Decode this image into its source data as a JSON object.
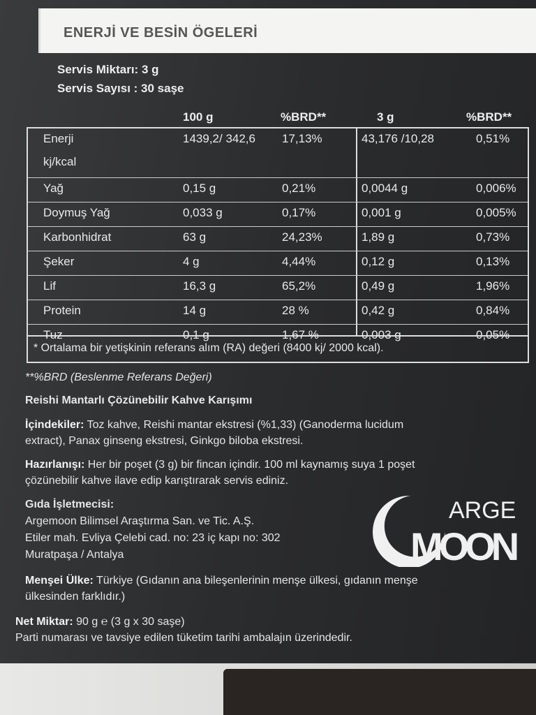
{
  "title": "ENERJİ VE BESİN ÖGELERİ",
  "serving_size": "Servis Miktarı: 3 g",
  "serving_count": "Servis Sayısı : 30 saşe",
  "columns": [
    "100 g",
    "%BRD**",
    "3 g",
    "%BRD**"
  ],
  "rows": [
    {
      "name": "Enerji",
      "sub": "kj/kcal",
      "v100": "1439,2/ 342,6",
      "brd100": "17,13%",
      "v3": "43,176 /10,28",
      "brd3": "0,51%"
    },
    {
      "name": "Yağ",
      "v100": "0,15 g",
      "brd100": "0,21%",
      "v3": "0,0044 g",
      "brd3": "0,006%"
    },
    {
      "name": "Doymuş Yağ",
      "v100": "0,033 g",
      "brd100": "0,17%",
      "v3": "0,001 g",
      "brd3": "0,005%"
    },
    {
      "name": "Karbonhidrat",
      "v100": "63 g",
      "brd100": "24,23%",
      "v3": "1,89 g",
      "brd3": "0,73%"
    },
    {
      "name": "Şeker",
      "v100": "4 g",
      "brd100": "4,44%",
      "v3": "0,12 g",
      "brd3": "0,13%"
    },
    {
      "name": "Lif",
      "v100": "16,3 g",
      "brd100": "65,2%",
      "v3": "0,49 g",
      "brd3": "1,96%"
    },
    {
      "name": "Protein",
      "v100": "14 g",
      "brd100": "28 %",
      "v3": "0,42 g",
      "brd3": "0,84%"
    },
    {
      "name": "Tuz",
      "v100": "0,1 g",
      "brd100": "1,67 %",
      "v3": "0,003 g",
      "brd3": "0,05%"
    }
  ],
  "ra_note": "* Ortalama bir yetişkinin referans alım (RA) değeri (8400 kj/ 2000 kcal).",
  "brd_note": "**%BRD (Beslenme Referans Değeri)",
  "product_name": "Reishi Mantarlı Çözünebilir Kahve Karışımı",
  "ingredients_label": "İçindekiler:",
  "ingredients_l1": " Toz kahve, Reishi mantar ekstresi (%1,33) (Ganoderma lucidum",
  "ingredients_l2": "extract), Panax ginseng ekstresi, Ginkgo biloba ekstresi.",
  "prep_label": "Hazırlanışı:",
  "prep_l1": " Her bir poşet (3 g) bir fincan içindir. 100 ml kaynamış suya 1 poşet",
  "prep_l2": "çözünebilir kahve ilave edip karıştırarak servis ediniz.",
  "operator_label": "Gıda İşletmecisi:",
  "operator_l1": "Argemoon Bilimsel Araştırma San. ve Tic. A.Ş.",
  "operator_l2": "Etiler mah. Evliya Çelebi cad. no: 23 iç kapı no: 302",
  "operator_l3": "Muratpaşa / Antalya",
  "origin_label": "Menşei Ülke:",
  "origin_l1": " Türkiye (Gıdanın ana bileşenlerinin menşe ülkesi, gıdanın menşe",
  "origin_l2": "ülkesinden farklıdır.)",
  "net_label": "Net Miktar:",
  "net_value": " 90 g ℮ (3 g x 30 saşe)",
  "lot_note": "Parti numarası ve tavsiye edilen tüketim tarihi ambalajın üzerindedir.",
  "logo": {
    "top": "ARGE",
    "bottom": "MOON"
  }
}
